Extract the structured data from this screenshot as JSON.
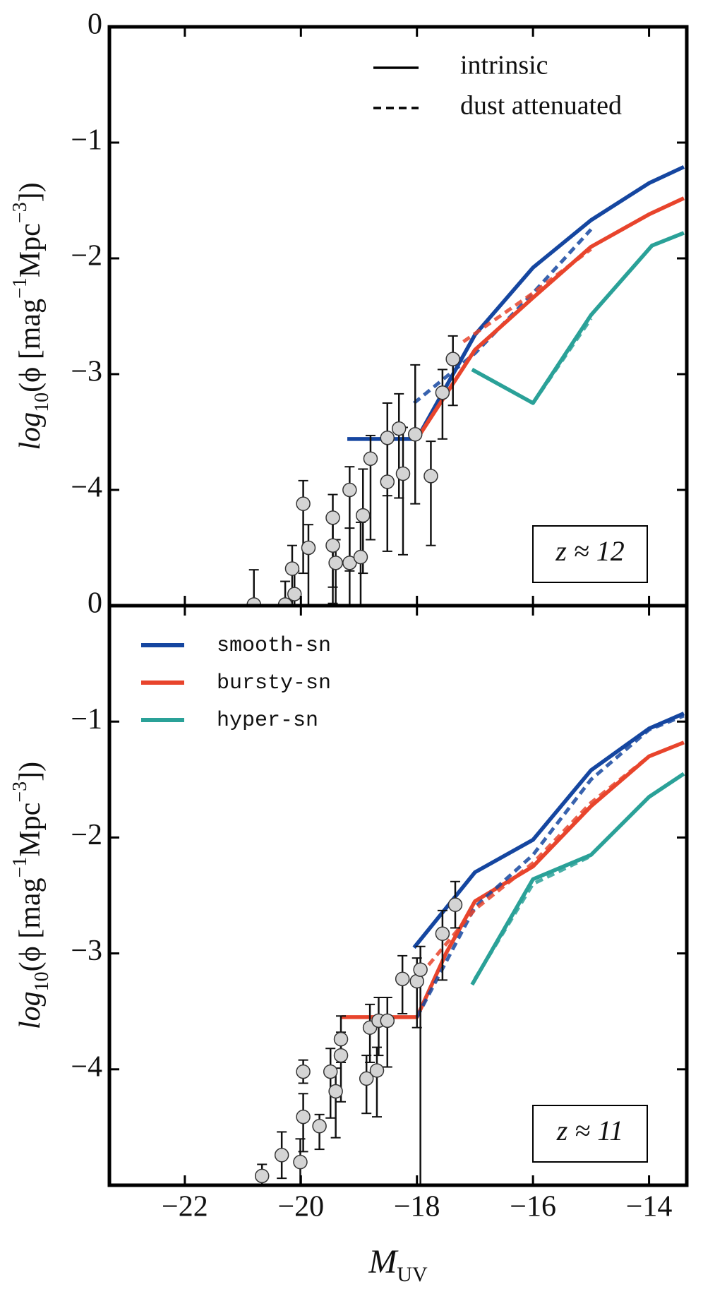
{
  "chart_data": [
    {
      "type": "line",
      "annotation": "z ≈ 12",
      "ylabel": [
        "log",
        "10",
        "(ϕ [mag",
        "−1",
        "Mpc",
        "−3",
        "])"
      ],
      "style_legend": [
        "intrinsic",
        "dust attenuated"
      ],
      "xlim": [
        -23.3,
        -13.35
      ],
      "xticks": [
        -22,
        -20,
        -18,
        -16,
        -14
      ],
      "ylim": [
        -5,
        0
      ],
      "yticks": [
        0,
        {
          "value": -1,
          "label": "−1"
        },
        {
          "value": -2,
          "label": "−2"
        },
        {
          "value": -3,
          "label": "−3"
        },
        {
          "value": -4,
          "label": "−4"
        }
      ],
      "series": [
        {
          "name": "smooth-sn",
          "color": "#1546a0",
          "dashed": false,
          "x": [
            -19.2,
            -18,
            -17,
            -16,
            -15,
            -14,
            -13.4
          ],
          "values": [
            -3.56,
            -3.56,
            -2.66,
            -2.08,
            -1.67,
            -1.35,
            -1.21
          ]
        },
        {
          "name": "smooth-sn",
          "color": "#1546a0",
          "dashed": true,
          "x": [
            -18.05,
            -17,
            -16,
            -15
          ],
          "values": [
            -3.25,
            -2.82,
            -2.3,
            -1.75
          ]
        },
        {
          "name": "bursty-sn",
          "color": "#e8442c",
          "dashed": false,
          "x": [
            -18,
            -17,
            -16,
            -15,
            -14,
            -13.4
          ],
          "values": [
            -3.56,
            -2.79,
            -2.34,
            -1.9,
            -1.62,
            -1.48
          ]
        },
        {
          "name": "bursty-sn",
          "color": "#e8442c",
          "dashed": true,
          "x": [
            -17.2,
            -16,
            -15
          ],
          "values": [
            -2.72,
            -2.3,
            -1.92
          ]
        },
        {
          "name": "hyper-sn",
          "color": "#2aa198",
          "dashed": false,
          "x": [
            -17.05,
            -16,
            -15,
            -13.95,
            -13.4
          ],
          "values": [
            -2.96,
            -3.25,
            -2.49,
            -1.89,
            -1.78
          ]
        },
        {
          "name": "hyper-sn",
          "color": "#2aa198",
          "dashed": true,
          "x": [
            -16,
            -15
          ],
          "values": [
            -3.25,
            -2.52
          ]
        }
      ],
      "points": {
        "x": [
          -20.81,
          -20.27,
          -20.11,
          -20.15,
          -19.96,
          -19.87,
          -19.45,
          -19.45,
          -19.4,
          -19.16,
          -19.16,
          -18.97,
          -18.93,
          -18.8,
          -18.51,
          -18.51,
          -18.31,
          -18.24,
          -18.03,
          -17.76,
          -17.56,
          -17.38
        ],
        "y": [
          -4.99,
          -4.99,
          -4.9,
          -4.68,
          -4.12,
          -4.5,
          -4.24,
          -4.48,
          -4.63,
          -4.63,
          -4.0,
          -4.58,
          -4.22,
          -3.73,
          -3.93,
          -3.55,
          -3.47,
          -3.86,
          -3.52,
          -3.88,
          -3.16,
          -2.87
        ],
        "yerr_low": [
          0.4,
          0.5,
          0.3,
          0.4,
          0.6,
          0.5,
          0.6,
          0.5,
          0.5,
          0.5,
          0.7,
          0.5,
          0.5,
          0.7,
          0.6,
          0.5,
          0.6,
          0.7,
          0.6,
          0.6,
          0.4,
          0.4
        ],
        "yerr_high": [
          0.3,
          0.2,
          0.2,
          0.2,
          0.2,
          0.2,
          0.2,
          0.2,
          0.2,
          0.3,
          0.2,
          0.3,
          0.4,
          0.2,
          0.4,
          0.3,
          0.3,
          0.4,
          0.6,
          0.3,
          0.2,
          0.2
        ]
      }
    },
    {
      "type": "line",
      "annotation": "z ≈ 11",
      "ylabel": [
        "log",
        "10",
        "(ϕ [mag",
        "−1",
        "Mpc",
        "−3",
        "])"
      ],
      "xlabel": [
        "M",
        "UV"
      ],
      "xlim": [
        -23.3,
        -13.35
      ],
      "xticks": [
        {
          "value": -22,
          "label": "−22"
        },
        {
          "value": -20,
          "label": "−20"
        },
        {
          "value": -18,
          "label": "−18"
        },
        {
          "value": -16,
          "label": "−16"
        },
        {
          "value": -14,
          "label": "−14"
        }
      ],
      "ylim": [
        -5,
        0
      ],
      "yticks": [
        0,
        {
          "value": -1,
          "label": "−1"
        },
        {
          "value": -2,
          "label": "−2"
        },
        {
          "value": -3,
          "label": "−3"
        },
        {
          "value": -4,
          "label": "−4"
        }
      ],
      "series": [
        {
          "name": "smooth-sn",
          "color": "#1546a0",
          "dashed": false,
          "x": [
            -18.05,
            -17,
            -16,
            -15,
            -14,
            -13.4
          ],
          "values": [
            -2.95,
            -2.3,
            -2.02,
            -1.42,
            -1.06,
            -0.93
          ]
        },
        {
          "name": "bursty-sn",
          "color": "#e8442c",
          "dashed": false,
          "x": [
            -19.3,
            -18,
            -17.5,
            -17,
            -16,
            -15,
            -14,
            -13.4
          ],
          "values": [
            -3.55,
            -3.55,
            -3.0,
            -2.55,
            -2.25,
            -1.73,
            -1.3,
            -1.18
          ]
        },
        {
          "name": "hyper-sn",
          "color": "#2aa198",
          "dashed": false,
          "x": [
            -17.05,
            -16,
            -15,
            -14,
            -13.4
          ],
          "values": [
            -3.27,
            -2.36,
            -2.15,
            -1.65,
            -1.45
          ]
        },
        {
          "name": "smooth-sn",
          "color": "#1546a0",
          "dashed": true,
          "x": [
            -18,
            -17,
            -16,
            -15,
            -14,
            -13.4
          ],
          "values": [
            -3.55,
            -2.6,
            -2.15,
            -1.5,
            -1.07,
            -0.95
          ]
        },
        {
          "name": "bursty-sn",
          "color": "#e8442c",
          "dashed": true,
          "x": [
            -17.8,
            -17,
            -16,
            -15,
            -14
          ],
          "values": [
            -3.1,
            -2.62,
            -2.22,
            -1.7,
            -1.3
          ]
        },
        {
          "name": "hyper-sn",
          "color": "#2aa198",
          "dashed": true,
          "x": [
            -17,
            -16,
            -15
          ],
          "values": [
            -3.22,
            -2.4,
            -2.16
          ]
        }
      ],
      "points": {
        "x": [
          -20.67,
          -20.33,
          -20.01,
          -19.96,
          -19.96,
          -19.68,
          -19.49,
          -19.4,
          -19.31,
          -19.31,
          -18.87,
          -18.81,
          -18.69,
          -18.66,
          -18.51,
          -18.25,
          -18.0,
          -17.94,
          -17.56,
          -17.34
        ],
        "y": [
          -4.92,
          -4.74,
          -4.8,
          -4.41,
          -4.02,
          -4.49,
          -4.02,
          -4.19,
          -3.88,
          -3.74,
          -4.08,
          -3.64,
          -4.01,
          -3.58,
          -3.58,
          -3.22,
          -3.24,
          -3.14,
          -2.83,
          -2.58
        ],
        "yerr_low": [
          0.2,
          0.2,
          0.3,
          0.3,
          0.1,
          0.2,
          0.4,
          0.4,
          0.4,
          0.2,
          0.3,
          0.3,
          0.4,
          0.3,
          0.4,
          0.3,
          0.4,
          2.0,
          0.4,
          0.2
        ],
        "yerr_high": [
          0.1,
          0.2,
          0.2,
          0.2,
          0.1,
          0.1,
          0.2,
          0.2,
          0.2,
          0.2,
          0.2,
          0.2,
          0.2,
          0.2,
          0.2,
          0.2,
          0.2,
          0.2,
          0.2,
          0.2
        ]
      }
    }
  ]
}
